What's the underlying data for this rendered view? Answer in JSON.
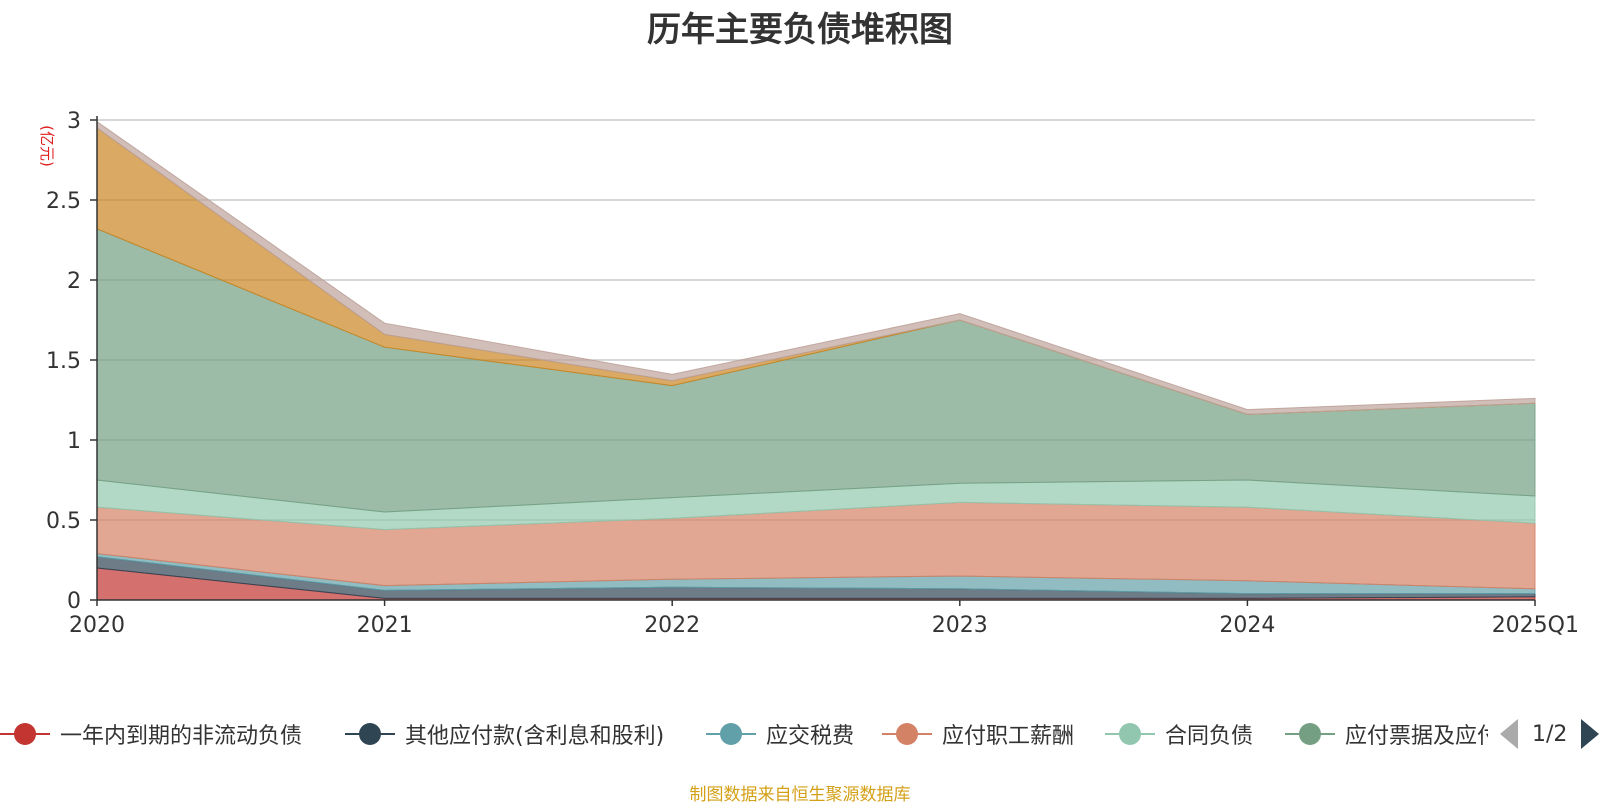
{
  "chart_data": {
    "type": "area",
    "stacked": true,
    "title": "历年主要负债堆积图",
    "unit_label": "(亿元)",
    "categories": [
      "2020",
      "2021",
      "2022",
      "2023",
      "2024",
      "2025Q1"
    ],
    "ylim": [
      0,
      3
    ],
    "yticks": [
      "0",
      "0.5",
      "1",
      "1.5",
      "2",
      "2.5",
      "3"
    ],
    "grid": true,
    "legend_position": "bottom",
    "series": [
      {
        "name": "一年内到期的非流动负债",
        "color": "#c23531",
        "values": [
          0.2,
          0.01,
          0.01,
          0.01,
          0.01,
          0.02
        ]
      },
      {
        "name": "其他应付款(含利息和股利)",
        "color": "#2f4554",
        "values": [
          0.07,
          0.05,
          0.07,
          0.06,
          0.03,
          0.02
        ]
      },
      {
        "name": "应交税费",
        "color": "#61a0a8",
        "values": [
          0.02,
          0.03,
          0.05,
          0.08,
          0.08,
          0.03
        ]
      },
      {
        "name": "应付职工薪酬",
        "color": "#d48265",
        "values": [
          0.29,
          0.35,
          0.38,
          0.46,
          0.46,
          0.41
        ]
      },
      {
        "name": "合同负债",
        "color": "#91c7ae",
        "values": [
          0.17,
          0.11,
          0.13,
          0.12,
          0.17,
          0.17
        ]
      },
      {
        "name": "应付票据及应付账款",
        "color": "#749f83",
        "values": [
          1.57,
          1.03,
          0.7,
          1.02,
          0.41,
          0.58
        ]
      },
      {
        "name": "",
        "color": "#ca8622",
        "values": [
          0.63,
          0.08,
          0.03,
          0.0,
          0.0,
          0.0
        ]
      },
      {
        "name": "",
        "color": "#bda29a",
        "values": [
          0.04,
          0.07,
          0.04,
          0.04,
          0.03,
          0.03
        ]
      }
    ]
  },
  "legend": {
    "pager_text": "1/2"
  },
  "source_note": "制图数据来自恒生聚源数据库"
}
